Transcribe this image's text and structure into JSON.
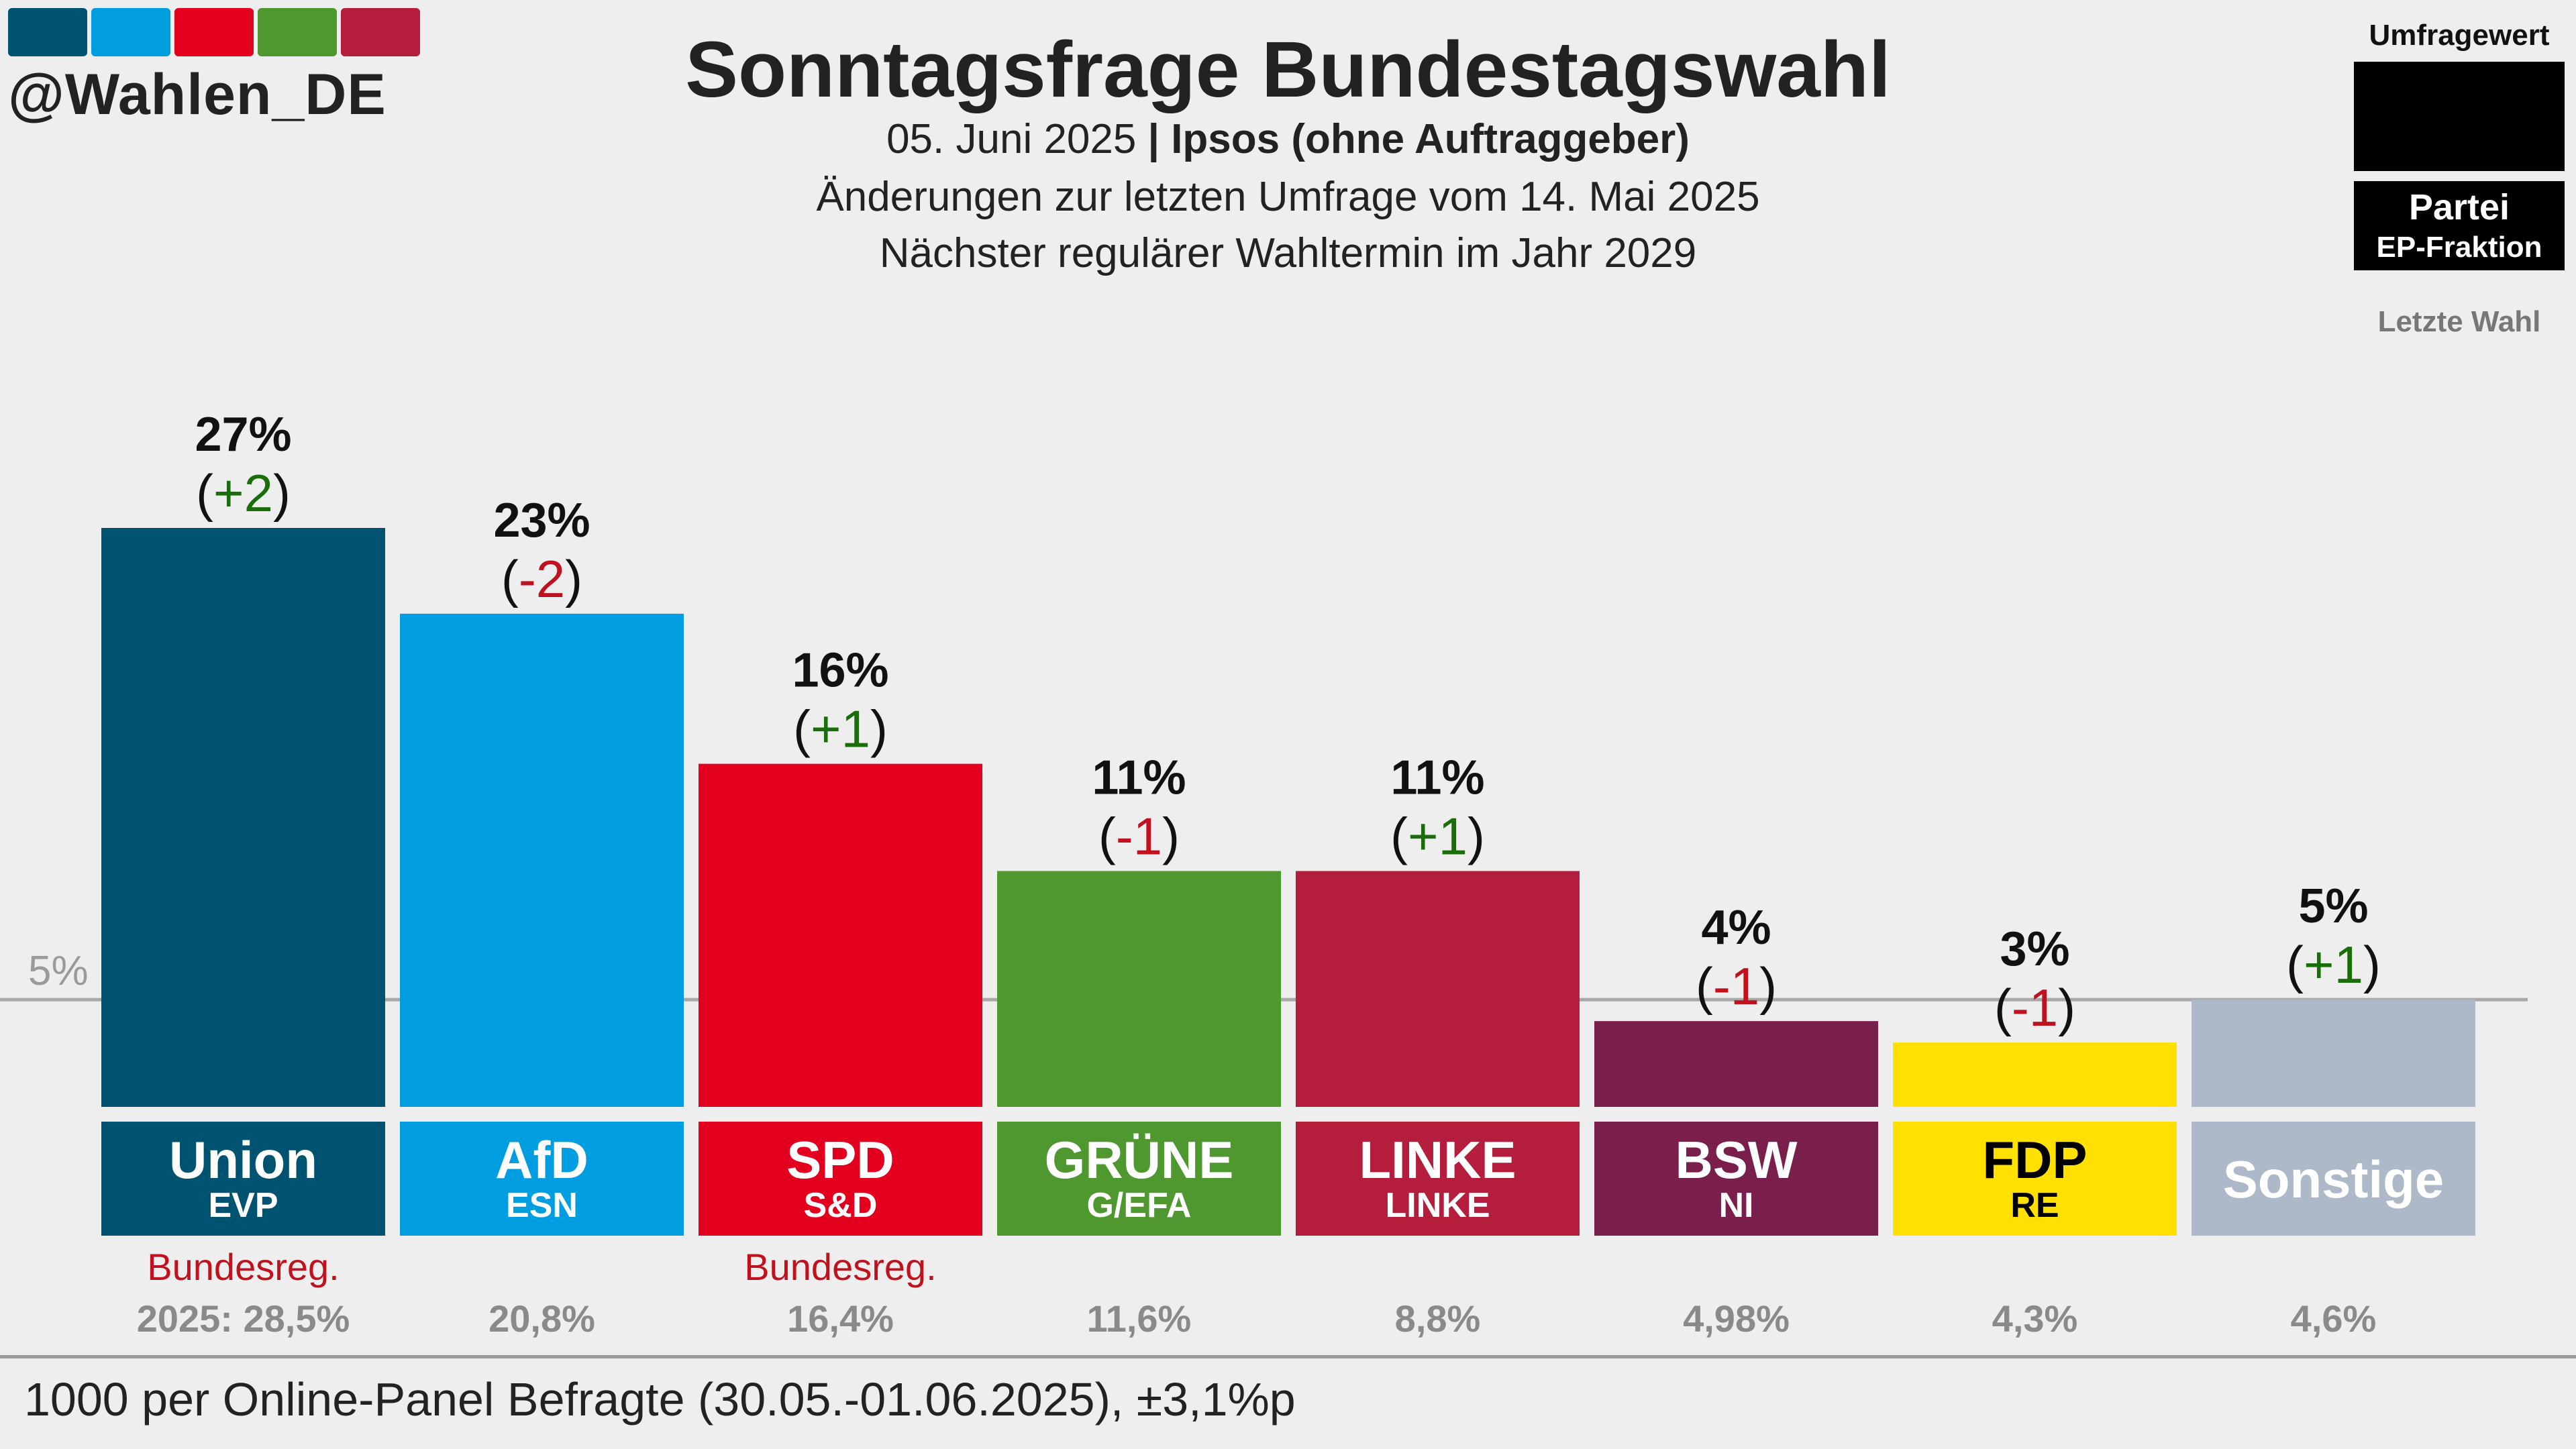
{
  "header": {
    "brand": "@Wahlen_DE",
    "logo_colors": [
      "#005370",
      "#009ee0",
      "#e3001e",
      "#4f982f",
      "#b41e3c"
    ],
    "title": "Sonntagsfrage Bundestagswahl",
    "date": "05. Juni 2025",
    "separator": "|",
    "institute": "Ipsos (ohne Auftraggeber)",
    "changes_note": "Änderungen zur letzten Umfrage vom 14. Mai 2025",
    "next_election": "Nächster regulärer Wahltermin im Jahr 2029"
  },
  "legend": {
    "value_label": "Umfragewert",
    "party_label": "Partei",
    "fraction_label": "EP-Fraktion",
    "last_election_label": "Letzte Wahl"
  },
  "footer": {
    "note": "1000 per Online-Panel Befragte (30.05.-01.06.2025), ±3,1%p"
  },
  "chart_data": {
    "type": "bar",
    "ylim": [
      0,
      27
    ],
    "threshold": 5,
    "threshold_label": "5%",
    "categories": [
      "Union",
      "AfD",
      "SPD",
      "GRÜNE",
      "LINKE",
      "BSW",
      "FDP",
      "Sonstige"
    ],
    "values": [
      27,
      23,
      16,
      11,
      11,
      4,
      3,
      5
    ],
    "value_labels": [
      "27%",
      "23%",
      "16%",
      "11%",
      "11%",
      "4%",
      "3%",
      "5%"
    ],
    "changes": [
      "+2",
      "-2",
      "+1",
      "-1",
      "+1",
      "-1",
      "-1",
      "+1"
    ],
    "change_signs": [
      1,
      -1,
      1,
      -1,
      1,
      -1,
      -1,
      1
    ],
    "fractions": [
      "EVP",
      "ESN",
      "S&D",
      "G/EFA",
      "LINKE",
      "NI",
      "RE",
      ""
    ],
    "government": [
      "Bundesreg.",
      "",
      "Bundesreg.",
      "",
      "",
      "",
      "",
      ""
    ],
    "last_election": [
      "2025: 28,5%",
      "20,8%",
      "16,4%",
      "11,6%",
      "8,8%",
      "4,98%",
      "4,3%",
      "4,6%"
    ],
    "colors": [
      "#005370",
      "#009ee0",
      "#e3001e",
      "#4f982f",
      "#b41e3c",
      "#7a1f4b",
      "#ffe000",
      "#adb8c8"
    ],
    "label_colors": [
      "#ffffff",
      "#ffffff",
      "#ffffff",
      "#ffffff",
      "#ffffff",
      "#ffffff",
      "#000000",
      "#ffffff"
    ],
    "positive_color": "#1a6e0a",
    "negative_color": "#c0121e"
  }
}
